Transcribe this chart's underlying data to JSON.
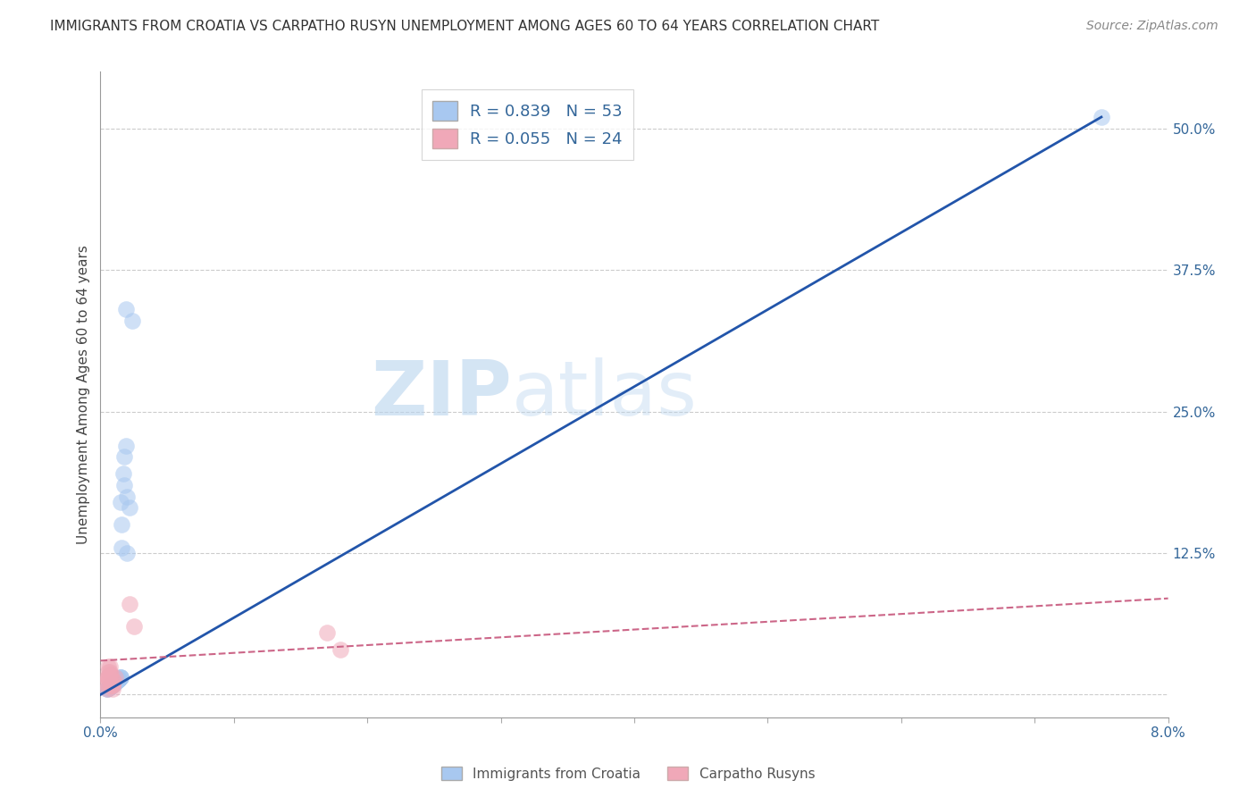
{
  "title": "IMMIGRANTS FROM CROATIA VS CARPATHO RUSYN UNEMPLOYMENT AMONG AGES 60 TO 64 YEARS CORRELATION CHART",
  "source": "Source: ZipAtlas.com",
  "ylabel": "Unemployment Among Ages 60 to 64 years",
  "xlim": [
    0.0,
    0.08
  ],
  "ylim": [
    -0.02,
    0.55
  ],
  "xticks": [
    0.0,
    0.01,
    0.02,
    0.03,
    0.04,
    0.05,
    0.06,
    0.07,
    0.08
  ],
  "xticklabels": [
    "0.0%",
    "",
    "",
    "",
    "",
    "",
    "",
    "",
    "8.0%"
  ],
  "yticks_right": [
    0.0,
    0.125,
    0.25,
    0.375,
    0.5
  ],
  "ytick_right_labels": [
    "",
    "12.5%",
    "25.0%",
    "37.5%",
    "50.0%"
  ],
  "R_croatia": 0.839,
  "N_croatia": 53,
  "R_rusyn": 0.055,
  "N_rusyn": 24,
  "legend_label_croatia": "Immigrants from Croatia",
  "legend_label_rusyn": "Carpatho Rusyns",
  "color_croatia": "#a8c8f0",
  "color_rusyn": "#f0a8b8",
  "color_line_croatia": "#2255aa",
  "color_line_rusyn": "#cc6688",
  "watermark_zip": "ZIP",
  "watermark_atlas": "atlas",
  "background_color": "#ffffff",
  "grid_color": "#cccccc",
  "croatia_line_x0": 0.0,
  "croatia_line_y0": 0.0,
  "croatia_line_x1": 0.075,
  "croatia_line_y1": 0.51,
  "rusyn_line_x0": 0.0,
  "rusyn_line_y0": 0.03,
  "rusyn_line_x1": 0.08,
  "rusyn_line_y1": 0.085,
  "croatia_scatter_x": [
    0.0005,
    0.001,
    0.0008,
    0.0012,
    0.0015,
    0.001,
    0.0008,
    0.0006,
    0.0014,
    0.001,
    0.0012,
    0.0008,
    0.0015,
    0.001,
    0.0007,
    0.0009,
    0.0011,
    0.0013,
    0.0005,
    0.0008,
    0.001,
    0.0012,
    0.0009,
    0.0006,
    0.0014,
    0.0011,
    0.0008,
    0.0013,
    0.0007,
    0.001,
    0.0015,
    0.0009,
    0.0006,
    0.0012,
    0.0008,
    0.001,
    0.0013,
    0.0007,
    0.0014,
    0.0009,
    0.0016,
    0.0017,
    0.0018,
    0.0015,
    0.002,
    0.0019,
    0.0016,
    0.0022,
    0.0018,
    0.002,
    0.0024,
    0.0019,
    0.075
  ],
  "croatia_scatter_y": [
    0.005,
    0.01,
    0.008,
    0.012,
    0.015,
    0.01,
    0.008,
    0.006,
    0.014,
    0.01,
    0.012,
    0.008,
    0.015,
    0.01,
    0.007,
    0.009,
    0.011,
    0.013,
    0.005,
    0.008,
    0.01,
    0.012,
    0.009,
    0.006,
    0.014,
    0.011,
    0.008,
    0.013,
    0.007,
    0.01,
    0.015,
    0.009,
    0.006,
    0.012,
    0.008,
    0.01,
    0.013,
    0.007,
    0.014,
    0.009,
    0.15,
    0.195,
    0.21,
    0.17,
    0.175,
    0.22,
    0.13,
    0.165,
    0.185,
    0.125,
    0.33,
    0.34,
    0.51
  ],
  "rusyn_scatter_x": [
    0.0004,
    0.0006,
    0.0008,
    0.0005,
    0.001,
    0.0007,
    0.0009,
    0.0006,
    0.0008,
    0.0011,
    0.0005,
    0.0007,
    0.0009,
    0.0006,
    0.001,
    0.0008,
    0.0005,
    0.0007,
    0.0009,
    0.0006,
    0.017,
    0.018,
    0.0022,
    0.0025
  ],
  "rusyn_scatter_y": [
    0.01,
    0.02,
    0.008,
    0.015,
    0.012,
    0.018,
    0.005,
    0.025,
    0.008,
    0.015,
    0.01,
    0.02,
    0.008,
    0.015,
    0.012,
    0.018,
    0.005,
    0.025,
    0.008,
    0.015,
    0.055,
    0.04,
    0.08,
    0.06
  ]
}
